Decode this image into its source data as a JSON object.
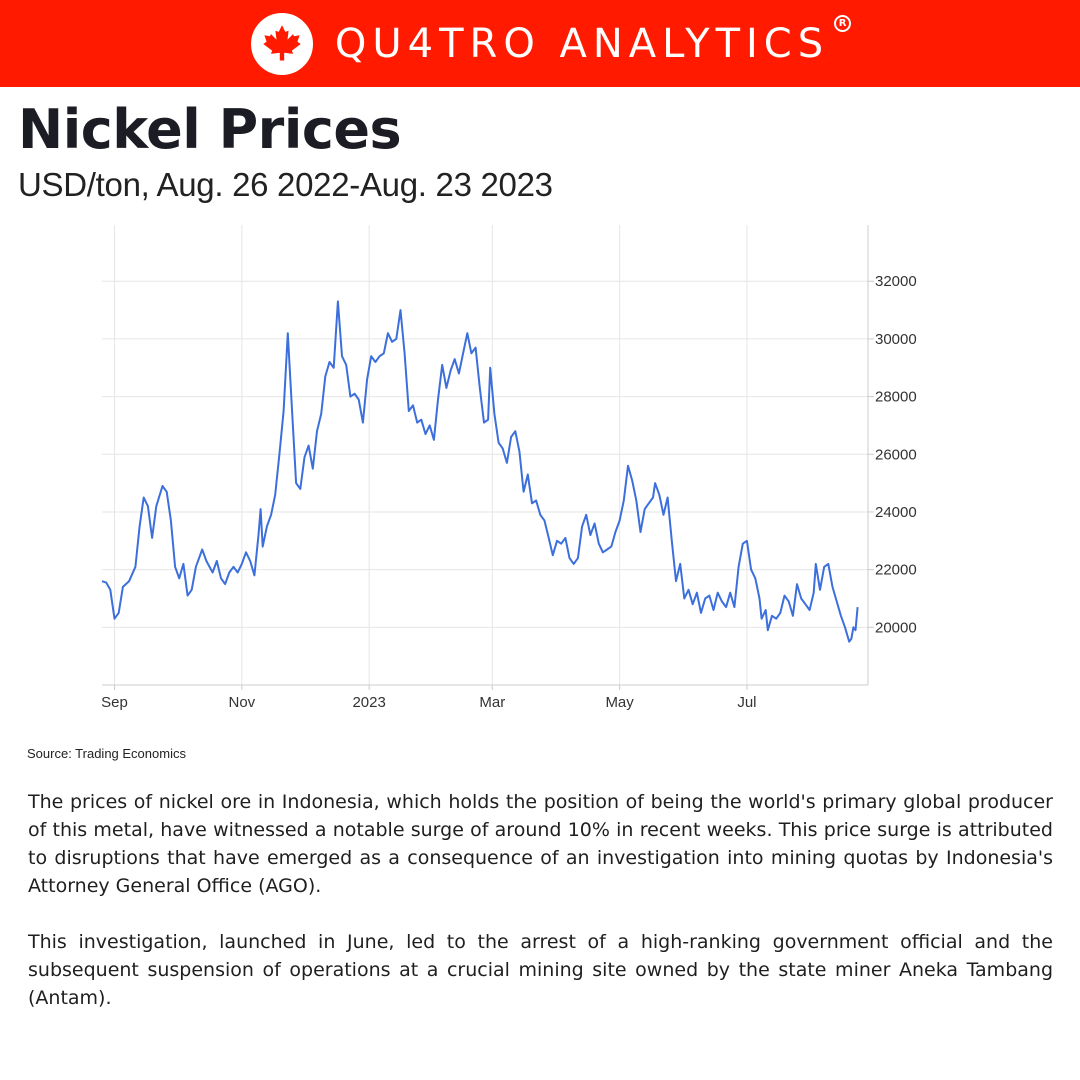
{
  "header": {
    "brand": "QU4TRO ANALYTICS",
    "registered": "R",
    "logo_icon": "maple-leaf-icon",
    "banner_color": "#ff1a00"
  },
  "title": "Nickel Prices",
  "subtitle": "USD/ton, Aug. 26 2022-Aug. 23 2023",
  "source": "Source: Trading Economics",
  "paragraphs": [
    "The prices of nickel ore in Indonesia, which holds the position of being the world's primary global producer of this metal, have witnessed a notable surge of around 10% in recent weeks. This price surge is attributed to disruptions that have emerged as a consequence of an investigation into mining quotas by Indonesia's Attorney General Office (AGO).",
    "This investigation, launched in June, led to the arrest of a high-ranking government official and the subsequent suspension of operations at a crucial mining site owned by the state miner Aneka Tambang (Antam)."
  ],
  "chart_data": {
    "type": "line",
    "line_color": "#3c6fdc",
    "grid": true,
    "y_axis_side": "right",
    "x_ticks": [
      {
        "label": "Sep",
        "date": "2022-09-01"
      },
      {
        "label": "Nov",
        "date": "2022-11-01"
      },
      {
        "label": "2023",
        "date": "2023-01-01"
      },
      {
        "label": "Mar",
        "date": "2023-03-01"
      },
      {
        "label": "May",
        "date": "2023-05-01"
      },
      {
        "label": "Jul",
        "date": "2023-07-01"
      }
    ],
    "y_ticks": [
      20000,
      22000,
      24000,
      26000,
      28000,
      30000,
      32000
    ],
    "xlim": [
      "2022-08-26",
      "2023-08-28"
    ],
    "ylim": [
      18000,
      33950
    ],
    "series": [
      {
        "points": [
          [
            "2022-08-26",
            21600
          ],
          [
            "2022-08-28",
            21550
          ],
          [
            "2022-08-30",
            21300
          ],
          [
            "2022-09-01",
            20300
          ],
          [
            "2022-09-03",
            20500
          ],
          [
            "2022-09-05",
            21400
          ],
          [
            "2022-09-08",
            21600
          ],
          [
            "2022-09-11",
            22100
          ],
          [
            "2022-09-13",
            23500
          ],
          [
            "2022-09-15",
            24500
          ],
          [
            "2022-09-17",
            24200
          ],
          [
            "2022-09-19",
            23100
          ],
          [
            "2022-09-21",
            24200
          ],
          [
            "2022-09-24",
            24900
          ],
          [
            "2022-09-26",
            24700
          ],
          [
            "2022-09-28",
            23700
          ],
          [
            "2022-09-30",
            22100
          ],
          [
            "2022-10-02",
            21700
          ],
          [
            "2022-10-04",
            22200
          ],
          [
            "2022-10-06",
            21100
          ],
          [
            "2022-10-08",
            21300
          ],
          [
            "2022-10-10",
            22100
          ],
          [
            "2022-10-13",
            22700
          ],
          [
            "2022-10-15",
            22300
          ],
          [
            "2022-10-18",
            21900
          ],
          [
            "2022-10-20",
            22300
          ],
          [
            "2022-10-22",
            21700
          ],
          [
            "2022-10-24",
            21500
          ],
          [
            "2022-10-26",
            21900
          ],
          [
            "2022-10-28",
            22100
          ],
          [
            "2022-10-30",
            21900
          ],
          [
            "2022-11-01",
            22200
          ],
          [
            "2022-11-03",
            22600
          ],
          [
            "2022-11-05",
            22300
          ],
          [
            "2022-11-07",
            21800
          ],
          [
            "2022-11-09",
            23200
          ],
          [
            "2022-11-10",
            24100
          ],
          [
            "2022-11-11",
            22800
          ],
          [
            "2022-11-13",
            23500
          ],
          [
            "2022-11-15",
            23900
          ],
          [
            "2022-11-17",
            24600
          ],
          [
            "2022-11-19",
            26000
          ],
          [
            "2022-11-21",
            27500
          ],
          [
            "2022-11-23",
            30200
          ],
          [
            "2022-11-25",
            27600
          ],
          [
            "2022-11-27",
            25000
          ],
          [
            "2022-11-29",
            24800
          ],
          [
            "2022-12-01",
            25900
          ],
          [
            "2022-12-03",
            26300
          ],
          [
            "2022-12-05",
            25500
          ],
          [
            "2022-12-07",
            26800
          ],
          [
            "2022-12-09",
            27400
          ],
          [
            "2022-12-11",
            28700
          ],
          [
            "2022-12-13",
            29200
          ],
          [
            "2022-12-15",
            29000
          ],
          [
            "2022-12-17",
            31300
          ],
          [
            "2022-12-19",
            29400
          ],
          [
            "2022-12-21",
            29100
          ],
          [
            "2022-12-23",
            28000
          ],
          [
            "2022-12-25",
            28100
          ],
          [
            "2022-12-27",
            27900
          ],
          [
            "2022-12-29",
            27100
          ],
          [
            "2022-12-31",
            28600
          ],
          [
            "2023-01-02",
            29400
          ],
          [
            "2023-01-04",
            29200
          ],
          [
            "2023-01-06",
            29400
          ],
          [
            "2023-01-08",
            29500
          ],
          [
            "2023-01-10",
            30200
          ],
          [
            "2023-01-12",
            29900
          ],
          [
            "2023-01-14",
            30000
          ],
          [
            "2023-01-16",
            31000
          ],
          [
            "2023-01-18",
            29500
          ],
          [
            "2023-01-20",
            27500
          ],
          [
            "2023-01-22",
            27700
          ],
          [
            "2023-01-24",
            27100
          ],
          [
            "2023-01-26",
            27200
          ],
          [
            "2023-01-28",
            26700
          ],
          [
            "2023-01-30",
            27000
          ],
          [
            "2023-02-01",
            26500
          ],
          [
            "2023-02-03",
            27900
          ],
          [
            "2023-02-05",
            29100
          ],
          [
            "2023-02-07",
            28300
          ],
          [
            "2023-02-09",
            28900
          ],
          [
            "2023-02-11",
            29300
          ],
          [
            "2023-02-13",
            28800
          ],
          [
            "2023-02-15",
            29500
          ],
          [
            "2023-02-17",
            30200
          ],
          [
            "2023-02-19",
            29500
          ],
          [
            "2023-02-21",
            29700
          ],
          [
            "2023-02-23",
            28300
          ],
          [
            "2023-02-25",
            27100
          ],
          [
            "2023-02-27",
            27200
          ],
          [
            "2023-02-28",
            29000
          ],
          [
            "2023-03-02",
            27400
          ],
          [
            "2023-03-04",
            26400
          ],
          [
            "2023-03-06",
            26200
          ],
          [
            "2023-03-08",
            25700
          ],
          [
            "2023-03-10",
            26600
          ],
          [
            "2023-03-12",
            26800
          ],
          [
            "2023-03-14",
            26100
          ],
          [
            "2023-03-16",
            24700
          ],
          [
            "2023-03-18",
            25300
          ],
          [
            "2023-03-20",
            24300
          ],
          [
            "2023-03-22",
            24400
          ],
          [
            "2023-03-24",
            23900
          ],
          [
            "2023-03-26",
            23700
          ],
          [
            "2023-03-28",
            23100
          ],
          [
            "2023-03-30",
            22500
          ],
          [
            "2023-04-01",
            23000
          ],
          [
            "2023-04-03",
            22900
          ],
          [
            "2023-04-05",
            23100
          ],
          [
            "2023-04-07",
            22400
          ],
          [
            "2023-04-09",
            22200
          ],
          [
            "2023-04-11",
            22400
          ],
          [
            "2023-04-13",
            23500
          ],
          [
            "2023-04-15",
            23900
          ],
          [
            "2023-04-17",
            23200
          ],
          [
            "2023-04-19",
            23600
          ],
          [
            "2023-04-21",
            22900
          ],
          [
            "2023-04-23",
            22600
          ],
          [
            "2023-04-25",
            22700
          ],
          [
            "2023-04-27",
            22800
          ],
          [
            "2023-04-29",
            23300
          ],
          [
            "2023-05-01",
            23700
          ],
          [
            "2023-05-03",
            24400
          ],
          [
            "2023-05-05",
            25600
          ],
          [
            "2023-05-07",
            25100
          ],
          [
            "2023-05-09",
            24400
          ],
          [
            "2023-05-11",
            23300
          ],
          [
            "2023-05-13",
            24100
          ],
          [
            "2023-05-15",
            24300
          ],
          [
            "2023-05-17",
            24500
          ],
          [
            "2023-05-18",
            25000
          ],
          [
            "2023-05-20",
            24600
          ],
          [
            "2023-05-22",
            23900
          ],
          [
            "2023-05-24",
            24500
          ],
          [
            "2023-05-26",
            23000
          ],
          [
            "2023-05-28",
            21600
          ],
          [
            "2023-05-30",
            22200
          ],
          [
            "2023-06-01",
            21000
          ],
          [
            "2023-06-03",
            21300
          ],
          [
            "2023-06-05",
            20800
          ],
          [
            "2023-06-07",
            21200
          ],
          [
            "2023-06-09",
            20500
          ],
          [
            "2023-06-11",
            21000
          ],
          [
            "2023-06-13",
            21100
          ],
          [
            "2023-06-15",
            20600
          ],
          [
            "2023-06-17",
            21200
          ],
          [
            "2023-06-19",
            20900
          ],
          [
            "2023-06-21",
            20700
          ],
          [
            "2023-06-23",
            21200
          ],
          [
            "2023-06-25",
            20700
          ],
          [
            "2023-06-27",
            22100
          ],
          [
            "2023-06-29",
            22900
          ],
          [
            "2023-07-01",
            23000
          ],
          [
            "2023-07-03",
            22000
          ],
          [
            "2023-07-05",
            21700
          ],
          [
            "2023-07-07",
            21000
          ],
          [
            "2023-07-08",
            20300
          ],
          [
            "2023-07-10",
            20600
          ],
          [
            "2023-07-11",
            19900
          ],
          [
            "2023-07-13",
            20400
          ],
          [
            "2023-07-15",
            20300
          ],
          [
            "2023-07-17",
            20500
          ],
          [
            "2023-07-19",
            21100
          ],
          [
            "2023-07-21",
            20900
          ],
          [
            "2023-07-23",
            20400
          ],
          [
            "2023-07-25",
            21500
          ],
          [
            "2023-07-27",
            21000
          ],
          [
            "2023-07-29",
            20800
          ],
          [
            "2023-07-31",
            20600
          ],
          [
            "2023-08-02",
            21200
          ],
          [
            "2023-08-03",
            22200
          ],
          [
            "2023-08-05",
            21300
          ],
          [
            "2023-08-07",
            22100
          ],
          [
            "2023-08-09",
            22200
          ],
          [
            "2023-08-11",
            21400
          ],
          [
            "2023-08-13",
            20900
          ],
          [
            "2023-08-15",
            20400
          ],
          [
            "2023-08-17",
            20000
          ],
          [
            "2023-08-19",
            19500
          ],
          [
            "2023-08-20",
            19600
          ],
          [
            "2023-08-21",
            20000
          ],
          [
            "2023-08-22",
            19900
          ],
          [
            "2023-08-23",
            20700
          ]
        ]
      }
    ]
  }
}
